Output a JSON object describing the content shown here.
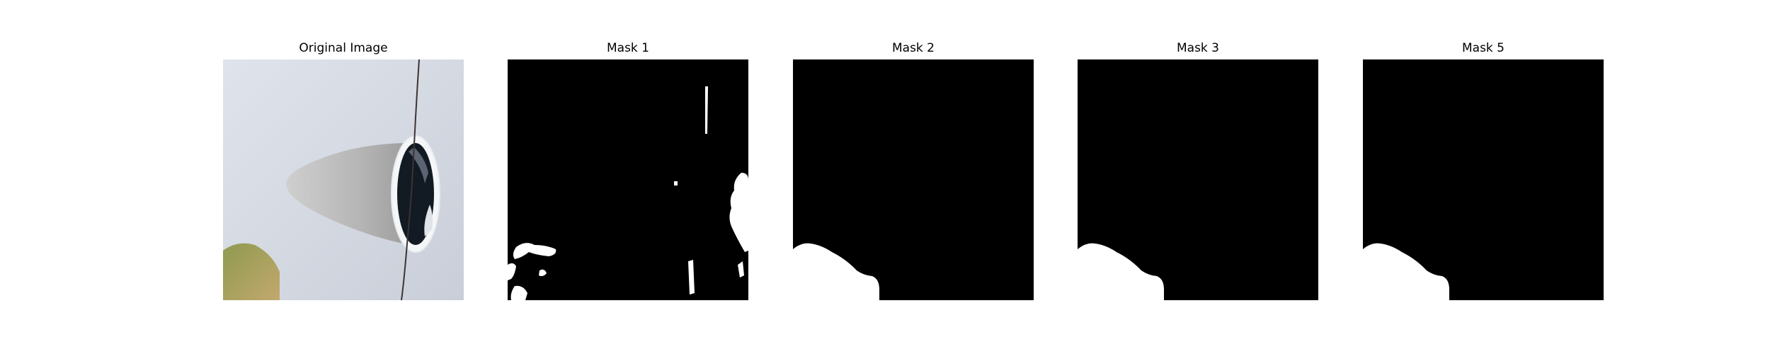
{
  "panels": [
    {
      "title": "Original Image"
    },
    {
      "title": "Mask 1"
    },
    {
      "title": "Mask 2"
    },
    {
      "title": "Mask 3"
    },
    {
      "title": "Mask 5"
    }
  ],
  "colors": {
    "mask_background": "#000000",
    "mask_foreground": "#ffffff",
    "wall": "#dde2ea",
    "cone": "#bdbdbd",
    "dark_opening": "#101820",
    "ochre": "#b3a06a"
  },
  "icons": [
    "photo-image",
    "binary-mask"
  ]
}
